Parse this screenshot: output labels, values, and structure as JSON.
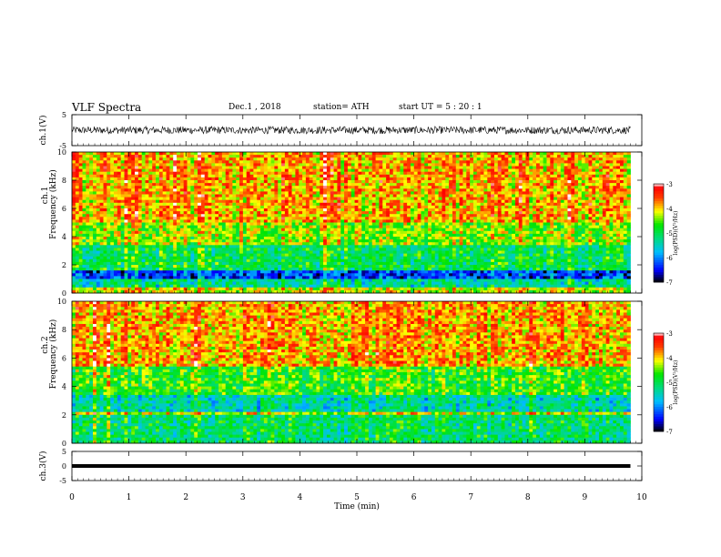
{
  "header": {
    "title": "VLF  Spectra",
    "date": "Dec.1  , 2018",
    "station": "station= ATH",
    "start_ut": "start  UT  =    5  : 20 : 1"
  },
  "chart_data": [
    {
      "type": "line",
      "name": "ch1-waveform",
      "ylabel": "ch.1(V)",
      "ylim": [
        -5,
        5
      ],
      "yticks": [
        "5",
        "-5"
      ],
      "x_range_min": [
        0,
        9.8
      ],
      "amplitude_range_v": [
        -1.5,
        1.5
      ],
      "color": "#000000"
    },
    {
      "type": "heatmap",
      "name": "ch1-spectrogram",
      "ylabel_ch": "ch.1",
      "ylabel": "Frequency  (kHz)",
      "ylim": [
        0,
        10
      ],
      "yticks": [
        "0",
        "2",
        "4",
        "6",
        "8",
        "10"
      ],
      "x_range_min": [
        0,
        9.8
      ],
      "colorbar": {
        "label": "log(PSD)(V²/Hz)",
        "range": [
          -7,
          -3
        ],
        "ticks": [
          "-3",
          "-4",
          "-5",
          "-6",
          "-7"
        ]
      },
      "dominant_log_psd_by_band": [
        {
          "band_khz": [
            0,
            0.5
          ],
          "log_psd": -4.2
        },
        {
          "band_khz": [
            0.5,
            1.0
          ],
          "log_psd": -5.3
        },
        {
          "band_khz": [
            1.0,
            1.6
          ],
          "log_psd": -6.3
        },
        {
          "band_khz": [
            1.6,
            3.5
          ],
          "log_psd": -5.0
        },
        {
          "band_khz": [
            3.5,
            5.0
          ],
          "log_psd": -4.4
        },
        {
          "band_khz": [
            5.0,
            10.0
          ],
          "log_psd": -3.9
        }
      ]
    },
    {
      "type": "heatmap",
      "name": "ch2-spectrogram",
      "ylabel_ch": "ch.2",
      "ylabel": "Frequency  (kHz)",
      "ylim": [
        0,
        10
      ],
      "yticks": [
        "0",
        "2",
        "4",
        "6",
        "8",
        "10"
      ],
      "x_range_min": [
        0,
        9.8
      ],
      "colorbar": {
        "label": "log(PSD)(V²/Hz)",
        "range": [
          -7,
          -3
        ],
        "ticks": [
          "-3",
          "-4",
          "-5",
          "-6",
          "-7"
        ]
      },
      "dominant_log_psd_by_band": [
        {
          "band_khz": [
            0,
            2.0
          ],
          "log_psd": -5.1
        },
        {
          "band_khz": [
            2.0,
            2.2
          ],
          "log_psd": -4.2
        },
        {
          "band_khz": [
            2.2,
            3.5
          ],
          "log_psd": -5.4
        },
        {
          "band_khz": [
            3.5,
            5.5
          ],
          "log_psd": -4.7
        },
        {
          "band_khz": [
            5.5,
            10.0
          ],
          "log_psd": -3.9
        }
      ]
    },
    {
      "type": "line",
      "name": "ch3-waveform",
      "ylabel": "ch.3(V)",
      "ylim": [
        -5,
        5
      ],
      "yticks": [
        "5",
        "0",
        "-5"
      ],
      "x_range_min": [
        0,
        9.8
      ],
      "baseline_v": 0,
      "color": "#000000"
    }
  ],
  "xaxis": {
    "label": "Time  (min)",
    "range": [
      0,
      10
    ],
    "ticks": [
      "0",
      "1",
      "2",
      "3",
      "4",
      "5",
      "6",
      "7",
      "8",
      "9",
      "10"
    ]
  }
}
